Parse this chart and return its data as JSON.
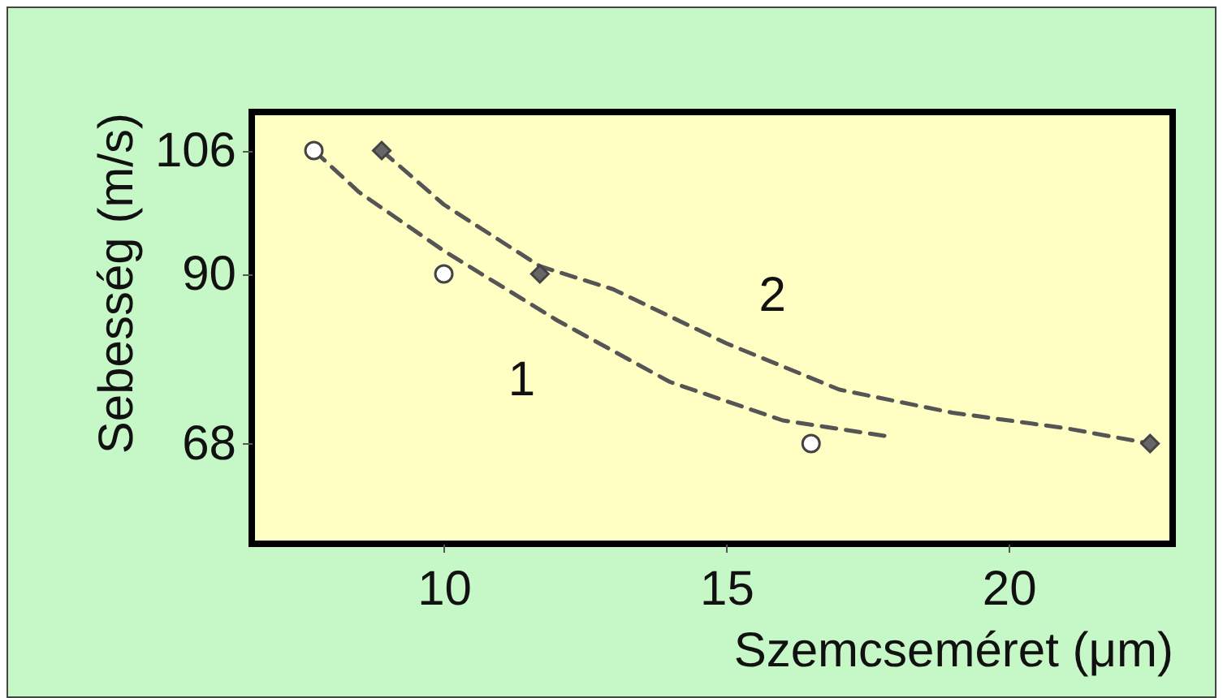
{
  "chart_data": {
    "type": "scatter",
    "xlabel": "Szemcseméret (μm)",
    "ylabel": "Sebesség (m/s)",
    "xlim": [
      6.6,
      22.9
    ],
    "xticks": [
      10,
      15,
      20
    ],
    "ylim": [
      55,
      111
    ],
    "yticks": [
      68,
      90,
      106
    ],
    "grid": false,
    "series": [
      {
        "type": "line",
        "name": "1",
        "color": "#555555",
        "line_style": "dashed",
        "marker": "none",
        "x": [
          7.7,
          8.5,
          10,
          12,
          14,
          16,
          17.8
        ],
        "values": [
          106,
          100.6,
          93,
          84,
          76,
          71,
          69
        ]
      },
      {
        "type": "line",
        "name": "2",
        "color": "#555555",
        "line_style": "dashed",
        "marker": "none",
        "x": [
          8.9,
          10,
          11.7,
          13,
          15,
          17,
          19,
          21,
          22.5
        ],
        "values": [
          106,
          99,
          91,
          88,
          81,
          75,
          72,
          70,
          68
        ]
      },
      {
        "color": "#ffffff",
        "marker": "circle",
        "x": [
          7.7,
          10,
          16.5
        ],
        "values": [
          106,
          90,
          68
        ]
      },
      {
        "color": "#666666",
        "marker": "diamond",
        "x": [
          8.9,
          11.7,
          22.5
        ],
        "values": [
          106,
          90,
          68
        ]
      }
    ]
  }
}
